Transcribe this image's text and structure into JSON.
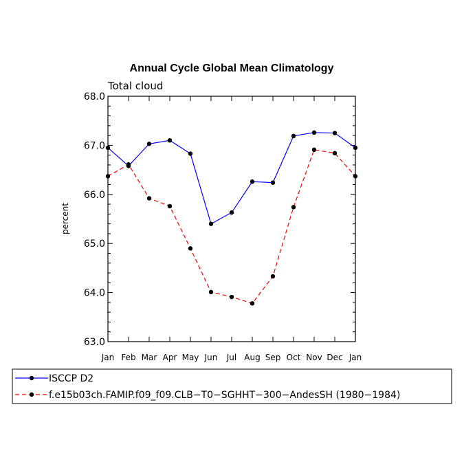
{
  "chart_data": {
    "type": "line",
    "title": "Annual Cycle Global Mean Climatology",
    "subtitle": "Total cloud",
    "xlabel": "",
    "ylabel": "percent",
    "categories": [
      "Jan",
      "Feb",
      "Mar",
      "Apr",
      "May",
      "Jun",
      "Jul",
      "Aug",
      "Sep",
      "Oct",
      "Nov",
      "Dec",
      "Jan"
    ],
    "ylim": [
      63.0,
      68.0
    ],
    "yticks": [
      "63.0",
      "64.0",
      "65.0",
      "66.0",
      "67.0",
      "68.0"
    ],
    "series": [
      {
        "name": "ISCCP D2",
        "color": "#0000ff",
        "dash": "solid",
        "values": [
          66.95,
          66.58,
          67.03,
          67.1,
          66.83,
          65.4,
          65.63,
          66.26,
          66.24,
          67.19,
          67.26,
          67.25,
          66.95
        ]
      },
      {
        "name": "f.e15b03ch.FAMIP.f09_f09.CLB−T0−SGHHT−300−AndesSH (1980−1984)",
        "color": "#ff0000",
        "dash": "dashed",
        "values": [
          66.37,
          66.61,
          65.92,
          65.76,
          64.9,
          64.01,
          63.91,
          63.78,
          64.33,
          65.74,
          66.91,
          66.84,
          66.37
        ]
      }
    ],
    "legend_position": "bottom"
  }
}
